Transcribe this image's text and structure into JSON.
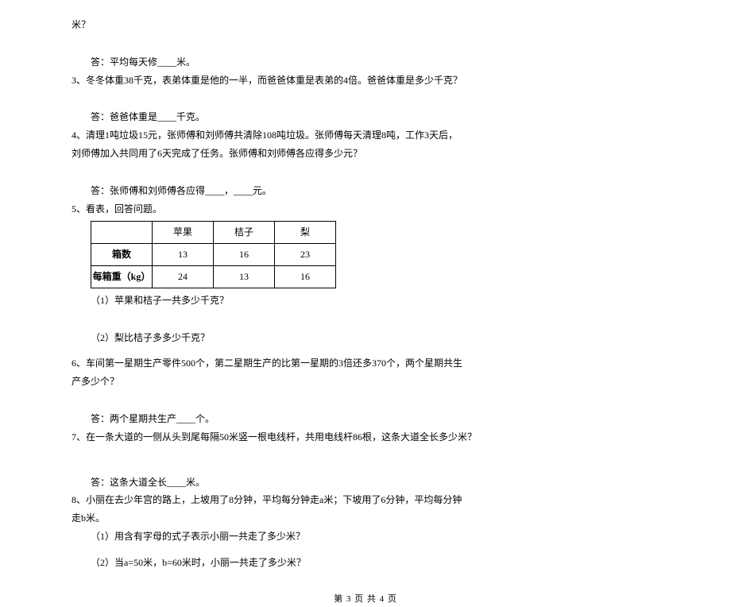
{
  "line_top": "米？",
  "q_top_ans": "答：平均每天修____米。",
  "q3": "3、冬冬体重38千克，表弟体重是他的一半，而爸爸体重是表弟的4倍。爸爸体重是多少千克？",
  "q3_ans": "答：爸爸体重是____千克。",
  "q4a": "4、清理1吨垃圾15元，张师傅和刘师傅共清除108吨垃圾。张师傅每天清理8吨，工作3天后，",
  "q4b": "刘师傅加入共同用了6天完成了任务。张师傅和刘师傅各应得多少元？",
  "q4_ans": "答：张师傅和刘师傅各应得____，____元。",
  "q5": "5、看表，回答问题。",
  "table": {
    "headers": [
      "",
      "苹果",
      "桔子",
      "梨"
    ],
    "rows": [
      [
        "箱数",
        "13",
        "16",
        "23"
      ],
      [
        "每箱重（kg）",
        "24",
        "13",
        "16"
      ]
    ]
  },
  "q5_1": "（1）苹果和桔子一共多少千克？",
  "q5_2": "（2）梨比桔子多多少千克？",
  "q6a": "6、车间第一星期生产零件500个，第二星期生产的比第一星期的3倍还多370个，两个星期共生",
  "q6b": "产多少个？",
  "q6_ans": "答：两个星期共生产____个。",
  "q7": "7、在一条大道的一侧从头到尾每隔50米竖一根电线杆，共用电线杆86根，这条大道全长多少米？",
  "q7_ans": "答：这条大道全长____米。",
  "q8a": "8、小丽在去少年宫的路上，上坡用了8分钟，平均每分钟走a米；下坡用了6分钟，平均每分钟",
  "q8b": "走b米。",
  "q8_1": "（1）用含有字母的式子表示小丽一共走了多少米？",
  "q8_2": "（2）当a=50米，b=60米时，小丽一共走了多少米？",
  "footer": "第 3 页  共 4 页"
}
